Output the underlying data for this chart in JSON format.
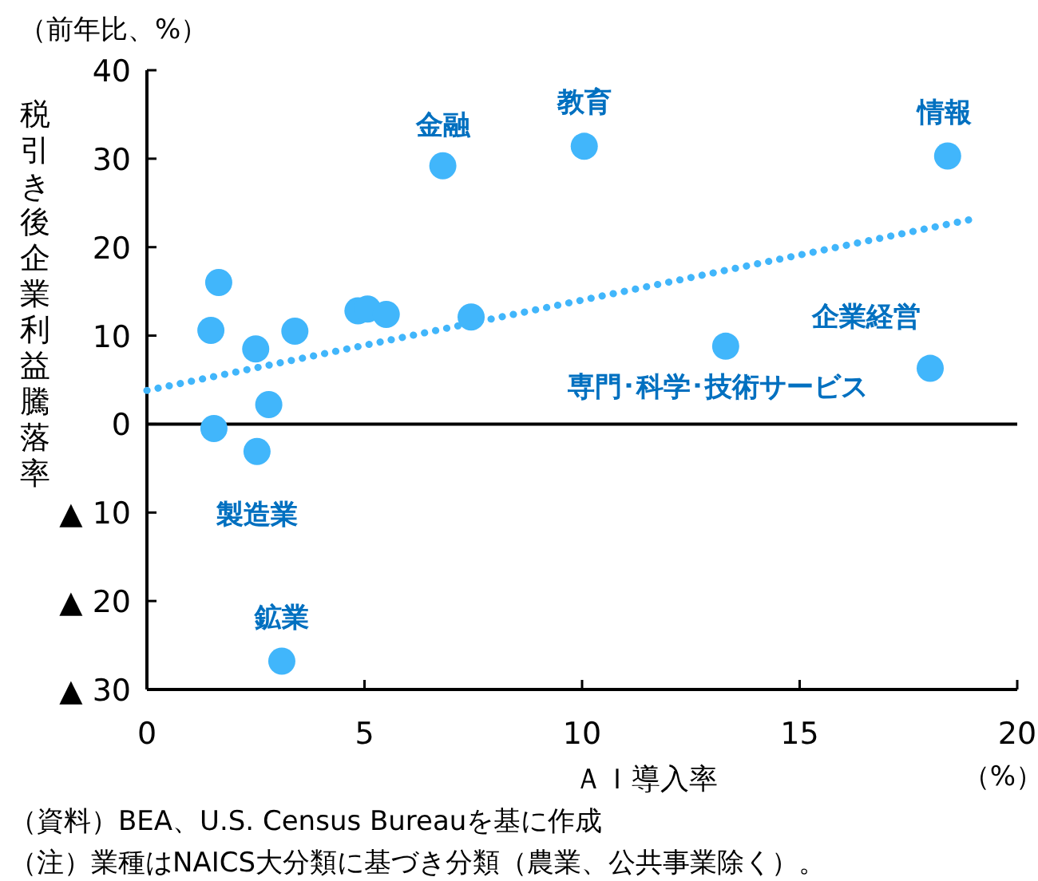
{
  "chart_data": {
    "type": "scatter",
    "xlabel": "ＡＩ導入率",
    "ylabel": "税引き後企業利益騰落率",
    "xlim": [
      0,
      20
    ],
    "ylim": [
      -30,
      40
    ],
    "xticks": [
      0,
      5,
      10,
      15,
      20
    ],
    "yticks": [
      {
        "value": -30,
        "label": "▲ 30"
      },
      {
        "value": -20,
        "label": "▲ 20"
      },
      {
        "value": -10,
        "label": "▲ 10"
      },
      0,
      10,
      20,
      30,
      40
    ],
    "grid": false,
    "marker": "circle",
    "series": [
      {
        "color": "#41b6fb",
        "x": [
          1.47,
          1.65,
          1.54,
          2.5,
          2.53,
          2.8,
          3.4,
          4.85,
          5.07,
          5.5,
          6.8,
          7.45,
          10.05,
          13.3,
          18.0,
          18.4,
          3.1
        ],
        "values": [
          10.6,
          16.0,
          -0.5,
          8.5,
          -3.1,
          2.2,
          10.5,
          12.8,
          13.0,
          12.4,
          29.2,
          12.1,
          31.4,
          8.8,
          6.3,
          30.3,
          -26.8
        ]
      },
      {
        "type": "line",
        "color": "#41b6fb",
        "line_style": "dotted",
        "marker": "none",
        "x": [
          0,
          19
        ],
        "values": [
          3.8,
          23.2
        ]
      }
    ],
    "ref_lines": [
      {
        "axis": "y",
        "value": 0,
        "color": "#000000",
        "line_style": "solid"
      }
    ],
    "annotations": [
      {
        "text": "金融",
        "x": 6.8,
        "y": 29.2
      },
      {
        "text": "教育",
        "x": 10.05,
        "y": 31.4
      },
      {
        "text": "情報",
        "x": 18.4,
        "y": 30.3
      },
      {
        "text": "企業経営",
        "x": 18.0,
        "y": 6.3
      },
      {
        "text": "専門･科学･技術サービス",
        "x": 13.3,
        "y": 8.8
      },
      {
        "text": "製造業",
        "x": 2.53,
        "y": -3.1
      },
      {
        "text": "鉱業",
        "x": 3.1,
        "y": -26.8
      },
      "（前年比、%）",
      "（%）",
      "（資料）BEA、U.S. Census Bureauを基に作成",
      "（注）業種はNAICS大分類に基づき分類（農業、公共事業除く）。"
    ]
  }
}
